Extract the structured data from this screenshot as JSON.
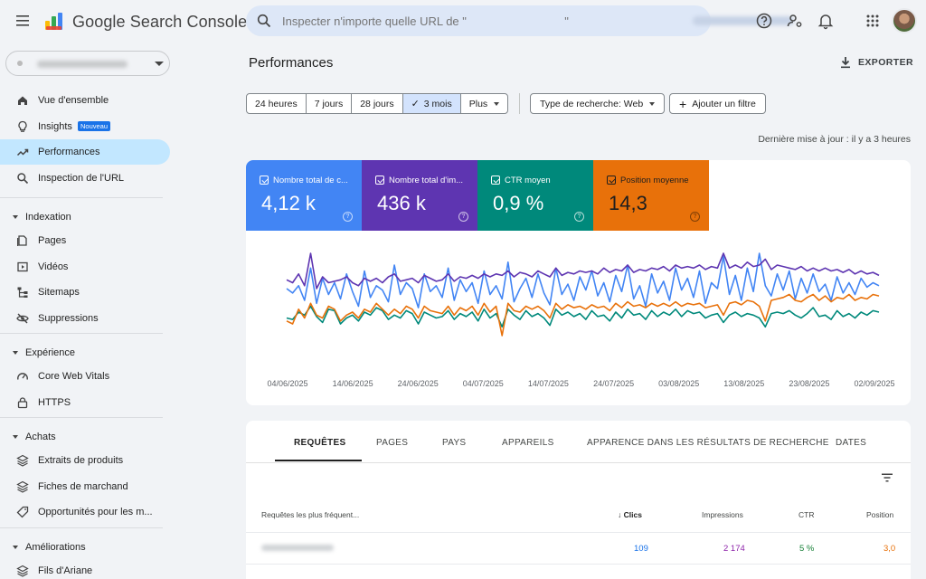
{
  "app": {
    "title": "Google Search Console",
    "search_placeholder": "Inspecter n'importe quelle URL de \"                              \""
  },
  "colors": {
    "clicks": "#4285f4",
    "impressions": "#5e35b1",
    "ctr": "#00897b",
    "position": "#e8710a",
    "nav_active": "#c2e7ff"
  },
  "icons": {
    "menu": "menu-icon",
    "help": "help-icon",
    "users": "user-settings-icon",
    "bell": "notifications-icon",
    "apps": "apps-grid-icon"
  },
  "sidebar": {
    "items_top": [
      {
        "label": "Vue d'ensemble",
        "icon": "home-icon"
      },
      {
        "label": "Insights",
        "icon": "lightbulb-icon",
        "badge": "Nouveau"
      },
      {
        "label": "Performances",
        "icon": "trending-icon",
        "active": true
      },
      {
        "label": "Inspection de l'URL",
        "icon": "search-icon"
      }
    ],
    "sections": [
      {
        "label": "Indexation",
        "items": [
          "Pages",
          "Vidéos",
          "Sitemaps",
          "Suppressions"
        ]
      },
      {
        "label": "Expérience",
        "items": [
          "Core Web Vitals",
          "HTTPS"
        ]
      },
      {
        "label": "Achats",
        "items": [
          "Extraits de produits",
          "Fiches de marchand",
          "Opportunités pour les m..."
        ]
      },
      {
        "label": "Améliorations",
        "items": [
          "Fils d'Ariane"
        ]
      }
    ]
  },
  "main": {
    "title": "Performances",
    "export_label": "EXPORTER",
    "date_ranges": [
      "24 heures",
      "7 jours",
      "28 jours",
      "3 mois",
      "Plus"
    ],
    "selected_range": "3 mois",
    "search_type": "Type de recherche: Web",
    "add_filter": "Ajouter un filtre",
    "last_update": "Dernière mise à jour : il y a 3 heures"
  },
  "metrics": [
    {
      "label": "Nombre total de c...",
      "value": "4,12 k"
    },
    {
      "label": "Nombre total d'im...",
      "value": "436 k"
    },
    {
      "label": "CTR moyen",
      "value": "0,9 %"
    },
    {
      "label": "Position moyenne",
      "value": "14,3"
    }
  ],
  "chart_data": {
    "type": "line",
    "x_ticks": [
      "04/06/2025",
      "14/06/2025",
      "24/06/2025",
      "04/07/2025",
      "14/07/2025",
      "24/07/2025",
      "03/08/2025",
      "13/08/2025",
      "23/08/2025",
      "02/09/2025"
    ],
    "grid": false,
    "series": [
      {
        "metric": "clicks",
        "values": [
          48,
          45,
          50,
          40,
          62,
          38,
          55,
          44,
          52,
          41,
          58,
          46,
          36,
          60,
          42,
          50,
          47,
          39,
          64,
          44,
          52,
          48,
          35,
          58,
          46,
          50,
          42,
          62,
          40,
          54,
          46,
          52,
          38,
          60,
          44,
          50,
          41,
          66,
          39,
          48,
          55,
          42,
          58,
          45,
          37,
          62,
          44,
          51,
          40,
          56,
          47,
          60,
          43,
          52,
          39,
          57,
          46,
          64,
          41,
          50,
          36,
          58,
          45,
          53,
          40,
          62,
          47,
          55,
          42,
          60,
          38,
          52,
          48,
          70,
          44,
          57,
          40,
          62,
          46,
          72,
          50,
          43,
          58,
          47,
          60,
          41,
          55,
          45,
          58,
          46,
          51,
          40,
          56,
          45,
          52,
          44,
          55,
          49,
          52,
          50
        ]
      },
      {
        "metric": "impressions",
        "values": [
          54,
          52,
          58,
          50,
          72,
          48,
          56,
          52,
          53,
          54,
          56,
          52,
          50,
          55,
          53,
          55,
          52,
          56,
          58,
          53,
          54,
          55,
          52,
          57,
          55,
          53,
          54,
          58,
          53,
          56,
          55,
          57,
          55,
          58,
          56,
          58,
          57,
          60,
          56,
          59,
          58,
          56,
          60,
          58,
          56,
          62,
          57,
          59,
          58,
          60,
          59,
          60,
          58,
          62,
          59,
          61,
          60,
          64,
          59,
          61,
          60,
          62,
          61,
          63,
          60,
          64,
          62,
          63,
          62,
          64,
          61,
          63,
          62,
          72,
          62,
          64,
          62,
          66,
          63,
          64,
          68,
          61,
          64,
          63,
          62,
          61,
          63,
          60,
          62,
          60,
          62,
          60,
          61,
          59,
          61,
          58,
          60,
          58,
          59,
          57
        ]
      },
      {
        "metric": "ctr",
        "values": [
          28,
          27,
          32,
          30,
          36,
          29,
          25,
          34,
          33,
          24,
          28,
          30,
          26,
          32,
          30,
          35,
          33,
          27,
          30,
          28,
          33,
          31,
          24,
          32,
          30,
          28,
          29,
          33,
          27,
          31,
          29,
          32,
          26,
          34,
          28,
          31,
          22,
          34,
          30,
          27,
          33,
          29,
          31,
          28,
          23,
          34,
          30,
          32,
          29,
          31,
          27,
          33,
          29,
          30,
          26,
          32,
          28,
          34,
          30,
          31,
          27,
          33,
          29,
          32,
          30,
          34,
          29,
          33,
          31,
          32,
          28,
          30,
          31,
          25,
          30,
          32,
          29,
          31,
          30,
          28,
          22,
          31,
          32,
          31,
          33,
          30,
          28,
          31,
          35,
          29,
          30,
          27,
          33,
          29,
          31,
          28,
          32,
          30,
          33,
          32
        ]
      },
      {
        "metric": "position",
        "values": [
          26,
          24,
          34,
          28,
          38,
          30,
          28,
          36,
          34,
          26,
          30,
          32,
          28,
          34,
          32,
          38,
          34,
          30,
          34,
          31,
          36,
          34,
          28,
          36,
          33,
          32,
          31,
          36,
          30,
          35,
          33,
          36,
          30,
          38,
          32,
          36,
          16,
          38,
          33,
          32,
          36,
          34,
          36,
          33,
          28,
          38,
          34,
          37,
          35,
          36,
          34,
          37,
          35,
          36,
          33,
          38,
          35,
          39,
          36,
          37,
          35,
          38,
          36,
          38,
          36,
          39,
          36,
          38,
          37,
          38,
          35,
          36,
          37,
          30,
          38,
          39,
          37,
          40,
          39,
          36,
          26,
          40,
          41,
          42,
          44,
          40,
          39,
          42,
          44,
          40,
          43,
          39,
          42,
          41,
          44,
          40,
          42,
          41,
          44,
          43
        ]
      }
    ]
  },
  "table": {
    "tabs": [
      "REQUÊTES",
      "PAGES",
      "PAYS",
      "APPAREILS",
      "APPARENCE DANS LES RÉSULTATS DE RECHERCHE",
      "DATES"
    ],
    "headers": [
      "Requêtes les plus fréquent...",
      "Clics",
      "Impressions",
      "CTR",
      "Position"
    ],
    "rows": [
      {
        "query": "",
        "clicks": "109",
        "impressions": "2 174",
        "ctr": "5 %",
        "position": "3,0"
      }
    ]
  }
}
